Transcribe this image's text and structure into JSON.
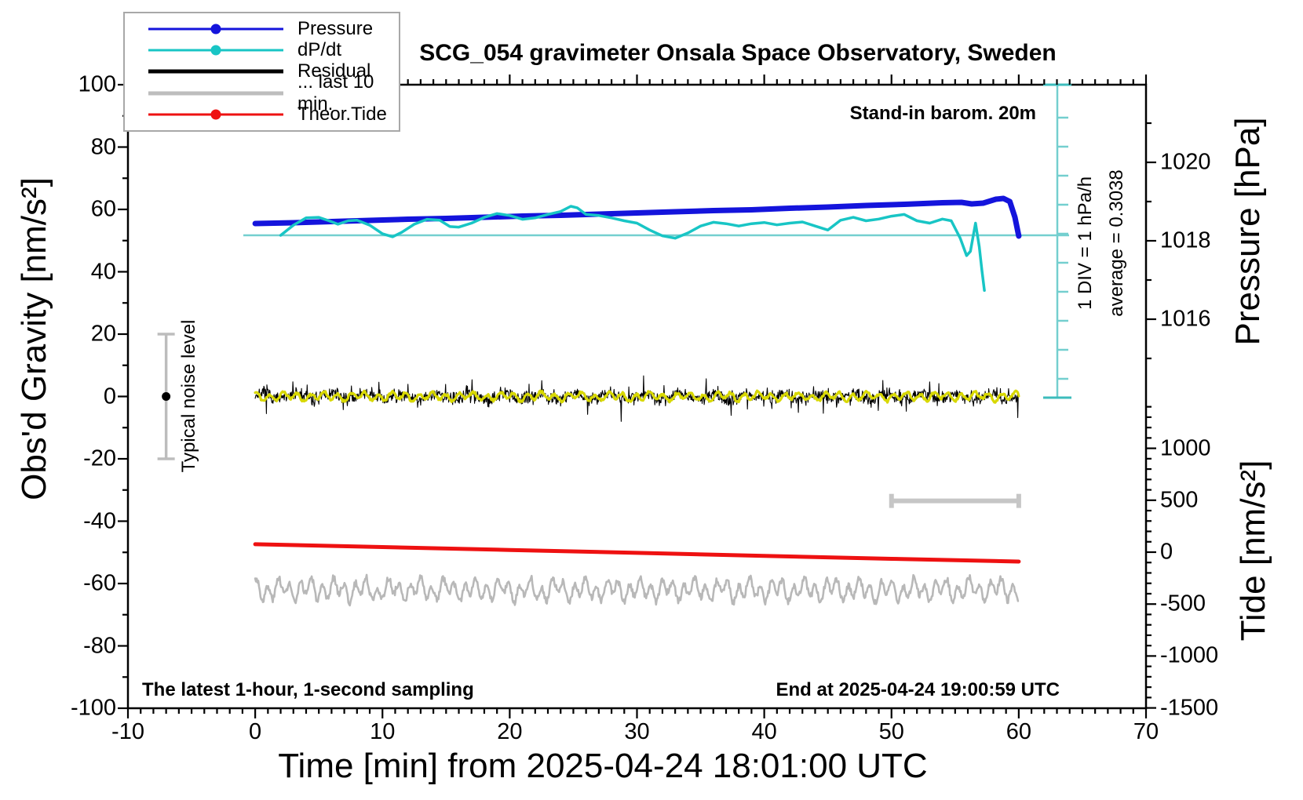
{
  "title": "SCG_054 gravimeter Onsala Space Observatory, Sweden",
  "annotations": {
    "standin": "Stand-in barom. 20m",
    "div_scale": "1 DIV = 1 hPa/h",
    "average": "average = 0.3038",
    "noise_level": "Typical noise level",
    "sampling": "The latest 1-hour, 1-second sampling",
    "end_time": "End at 2025-04-24 19:00:59 UTC"
  },
  "legend": {
    "entries": [
      {
        "label": "Pressure",
        "color": "#1414dc",
        "thick": 3,
        "dot": true
      },
      {
        "label": "dP/dt",
        "color": "#18c5c5",
        "thick": 3,
        "dot": true
      },
      {
        "label": "Residual",
        "color": "#000000",
        "thick": 5,
        "dot": false
      },
      {
        "label": "... last 10 min.",
        "color": "#bdbdbd",
        "thick": 5,
        "dot": false
      },
      {
        "label": "Theor.Tide",
        "color": "#ee1111",
        "thick": 3,
        "dot": true
      }
    ]
  },
  "chart_data": {
    "type": "line",
    "title": "SCG_054 gravimeter Onsala Space Observatory, Sweden",
    "xlabel": "Time [min] from 2025-04-24 18:01:00 UTC",
    "grid": false,
    "axes": {
      "x": {
        "range": [
          -10,
          70
        ],
        "major": [
          -10,
          0,
          10,
          20,
          30,
          40,
          50,
          60,
          70
        ],
        "minor_step": 1
      },
      "gravity": {
        "label": "Obs'd Gravity [nm/s²]",
        "range": [
          -100,
          100
        ],
        "major": [
          -100,
          -80,
          -60,
          -40,
          -20,
          0,
          20,
          40,
          60,
          80,
          100
        ],
        "minor_step": 10
      },
      "pressure": {
        "label": "Pressure [hPa]",
        "major": [
          1016,
          1018,
          1020
        ],
        "minor": [
          1015,
          1017,
          1019,
          1021
        ]
      },
      "tide": {
        "label": "Tide [nm/s²]",
        "major": [
          -1500,
          -1000,
          -500,
          0,
          500,
          1000
        ],
        "minor_step": 100,
        "minor_range": [
          -1400,
          1400
        ]
      },
      "dpdt": {
        "div_hpa_per_h": 1,
        "average": 0.3038,
        "zero_ref_hpa": 1018
      }
    },
    "series": [
      {
        "name": "Pressure",
        "axis": "pressure",
        "color": "#1414dc",
        "width": 7,
        "points": [
          [
            0,
            1018.44
          ],
          [
            3,
            1018.46
          ],
          [
            6,
            1018.49
          ],
          [
            9,
            1018.52
          ],
          [
            12,
            1018.55
          ],
          [
            15,
            1018.57
          ],
          [
            18,
            1018.6
          ],
          [
            21,
            1018.63
          ],
          [
            24,
            1018.65
          ],
          [
            27,
            1018.68
          ],
          [
            30,
            1018.71
          ],
          [
            33,
            1018.74
          ],
          [
            36,
            1018.77
          ],
          [
            39,
            1018.79
          ],
          [
            42,
            1018.83
          ],
          [
            45,
            1018.86
          ],
          [
            48,
            1018.9
          ],
          [
            51,
            1018.93
          ],
          [
            54,
            1018.97
          ],
          [
            55.5,
            1018.98
          ],
          [
            56.3,
            1018.94
          ],
          [
            57.2,
            1018.96
          ],
          [
            58.2,
            1019.06
          ],
          [
            58.8,
            1019.08
          ],
          [
            59.3,
            1019.0
          ],
          [
            59.7,
            1018.6
          ],
          [
            60,
            1018.12
          ]
        ]
      },
      {
        "name": "dP/dt",
        "axis": "dpdt",
        "color": "#18c5c5",
        "width": 3.5,
        "points": [
          [
            2,
            0.0
          ],
          [
            3,
            0.35
          ],
          [
            4,
            0.6
          ],
          [
            5,
            0.62
          ],
          [
            5.8,
            0.5
          ],
          [
            6.5,
            0.38
          ],
          [
            7.3,
            0.5
          ],
          [
            8,
            0.52
          ],
          [
            9,
            0.35
          ],
          [
            10,
            0.05
          ],
          [
            10.8,
            -0.05
          ],
          [
            11.5,
            0.1
          ],
          [
            12.5,
            0.38
          ],
          [
            13.5,
            0.55
          ],
          [
            14.5,
            0.52
          ],
          [
            15.3,
            0.3
          ],
          [
            16,
            0.28
          ],
          [
            17,
            0.42
          ],
          [
            18,
            0.62
          ],
          [
            19,
            0.75
          ],
          [
            20,
            0.68
          ],
          [
            21,
            0.55
          ],
          [
            22,
            0.6
          ],
          [
            23,
            0.72
          ],
          [
            24,
            0.82
          ],
          [
            24.8,
            1.0
          ],
          [
            25.3,
            0.95
          ],
          [
            26,
            0.72
          ],
          [
            27,
            0.68
          ],
          [
            28,
            0.6
          ],
          [
            29,
            0.5
          ],
          [
            30,
            0.42
          ],
          [
            31,
            0.18
          ],
          [
            32,
            -0.02
          ],
          [
            33,
            -0.1
          ],
          [
            34,
            0.08
          ],
          [
            35,
            0.32
          ],
          [
            36,
            0.45
          ],
          [
            37,
            0.4
          ],
          [
            38,
            0.32
          ],
          [
            39,
            0.4
          ],
          [
            40,
            0.44
          ],
          [
            41,
            0.36
          ],
          [
            42,
            0.42
          ],
          [
            43,
            0.46
          ],
          [
            44,
            0.32
          ],
          [
            45,
            0.18
          ],
          [
            46,
            0.52
          ],
          [
            47,
            0.62
          ],
          [
            48,
            0.5
          ],
          [
            49,
            0.56
          ],
          [
            50,
            0.66
          ],
          [
            51,
            0.72
          ],
          [
            52,
            0.5
          ],
          [
            53,
            0.42
          ],
          [
            54,
            0.56
          ],
          [
            54.7,
            0.5
          ],
          [
            55.4,
            -0.1
          ],
          [
            55.9,
            -0.7
          ],
          [
            56.2,
            -0.55
          ],
          [
            56.6,
            0.42
          ],
          [
            56.9,
            -0.4
          ],
          [
            57.1,
            -1.2
          ],
          [
            57.3,
            -1.9
          ]
        ]
      },
      {
        "name": "Residual",
        "axis": "gravity",
        "color": "#000000",
        "width": 1.1,
        "noise": {
          "center": 0,
          "typical_amp": 4,
          "spike_amp": 8,
          "x_range": [
            0,
            60
          ],
          "seed": 7
        }
      },
      {
        "name": "Residual smoothed",
        "axis": "gravity",
        "color": "#d8d800",
        "width": 3.2,
        "noise": {
          "center": 0,
          "typical_amp": 1.5,
          "x_range": [
            0,
            60
          ],
          "seed": 11
        }
      },
      {
        "name": "... last 10 min.",
        "axis": "gravity",
        "color": "#b8b8b8",
        "width": 2.6,
        "noise": {
          "center": -62,
          "typical_amp": 4,
          "x_range": [
            0,
            60
          ],
          "seed": 3
        }
      },
      {
        "name": "Theor.Tide",
        "axis": "tide",
        "color": "#ee1111",
        "width": 5,
        "points": [
          [
            0,
            76
          ],
          [
            10,
            49
          ],
          [
            20,
            21
          ],
          [
            30,
            -7
          ],
          [
            40,
            -36
          ],
          [
            50,
            -64
          ],
          [
            60,
            -91
          ]
        ]
      }
    ],
    "markers": {
      "noise_errorbar": {
        "x_min": -7,
        "gravity_span": [
          -20,
          20
        ],
        "dot_at": 0,
        "bar_color": "#bdbdbd",
        "dot_color": "#000000"
      },
      "last10_bar": {
        "x_span": [
          50,
          60
        ],
        "gravity": -33.5,
        "color": "#c6c6c6"
      },
      "dpdt_refline": {
        "color": "#74cfcf"
      },
      "dpdt_scalebar": {
        "color": "#74cfcf",
        "divisions": 10
      }
    }
  }
}
